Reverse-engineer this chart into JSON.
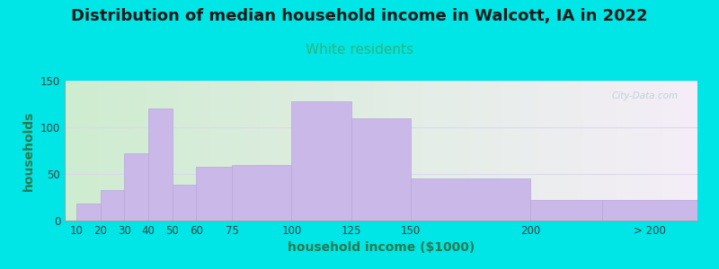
{
  "title": "Distribution of median household income in Walcott, IA in 2022",
  "subtitle": "White residents",
  "xlabel": "household income ($1000)",
  "ylabel": "households",
  "bar_lefts": [
    10,
    20,
    30,
    40,
    50,
    60,
    75,
    100,
    125,
    150,
    200,
    230
  ],
  "bar_widths": [
    10,
    10,
    10,
    10,
    10,
    15,
    25,
    25,
    25,
    50,
    30,
    40
  ],
  "bar_heights": [
    18,
    33,
    72,
    120,
    38,
    58,
    60,
    128,
    110,
    45,
    22,
    22
  ],
  "xtick_positions": [
    10,
    20,
    30,
    40,
    50,
    60,
    75,
    100,
    125,
    150,
    200,
    250
  ],
  "xtick_labels": [
    "10",
    "20",
    "30",
    "40",
    "50",
    "60",
    "75",
    "100",
    "125",
    "150",
    "200",
    "> 200"
  ],
  "bar_color": "#c9b8e8",
  "bar_edgecolor": "#b8a8d8",
  "ylim": [
    0,
    150
  ],
  "yticks": [
    0,
    50,
    100,
    150
  ],
  "xlim_left": 5,
  "xlim_right": 270,
  "bg_color": "#00e5e5",
  "grad_left": "#ceecd0",
  "grad_right": "#f5eef8",
  "title_fontsize": 13,
  "subtitle_fontsize": 11,
  "subtitle_color": "#2db57a",
  "axis_label_fontsize": 10,
  "tick_fontsize": 8.5,
  "watermark": "City-Data.com",
  "watermark_color": "#b8ccd8",
  "grid_color": "#ddd8ee",
  "ylabel_color": "#2a7a50",
  "xlabel_color": "#2a7a50"
}
